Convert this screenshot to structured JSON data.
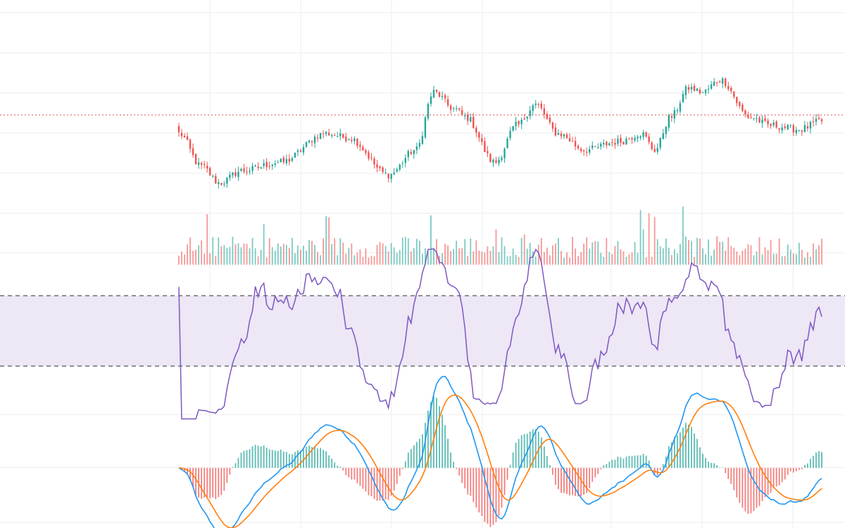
{
  "chart_data": [
    {
      "type": "candlestick",
      "name": "price",
      "grid": true,
      "reference_line": {
        "style": "dotted",
        "color": "#e05050",
        "value": 112.5
      },
      "ylim": [
        90,
        125
      ],
      "colors": {
        "up": "#26a69a",
        "down": "#ef5350"
      },
      "candles": []
    },
    {
      "type": "bar",
      "name": "volume",
      "colors": {
        "up": "#26a69a",
        "down": "#ef5350"
      },
      "values": []
    },
    {
      "type": "line",
      "name": "oscillator",
      "band": {
        "upper": 70,
        "lower": 30,
        "fill": "#ede7f6",
        "line_color": "#555555"
      },
      "ylim": [
        20,
        80
      ],
      "color": "#7e57c2",
      "values": []
    },
    {
      "type": "line+bar",
      "name": "macd",
      "line_colors": {
        "fast": "#2196f3",
        "slow": "#ff7f0e"
      },
      "hist_colors": {
        "up": "#26a69a",
        "down": "#ef5350"
      },
      "ylim": [
        -2.2,
        2.8
      ]
    }
  ]
}
